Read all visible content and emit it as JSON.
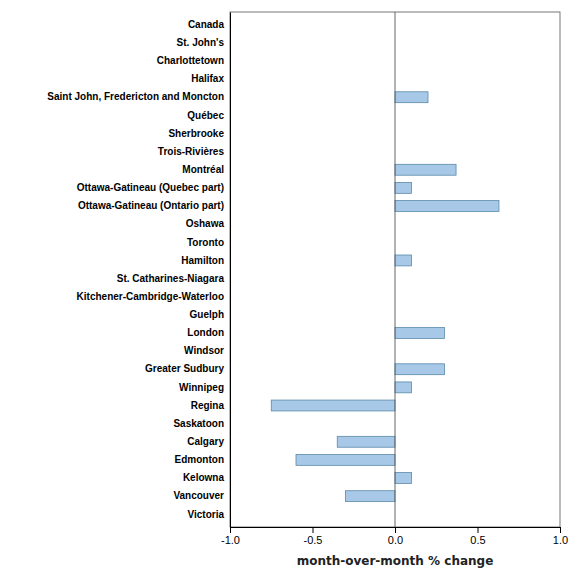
{
  "chart_data": {
    "type": "bar",
    "orientation": "horizontal",
    "x_label": "month-over-month % change",
    "categories": [
      "Canada",
      "St. John's",
      "Charlottetown",
      "Halifax",
      "Saint John, Fredericton and Moncton",
      "Québec",
      "Sherbrooke",
      "Trois-Rivières",
      "Montréal",
      "Ottawa-Gatineau (Quebec part)",
      "Ottawa-Gatineau (Ontario part)",
      "Oshawa",
      "Toronto",
      "Hamilton",
      "St. Catharines-Niagara",
      "Kitchener-Cambridge-Waterloo",
      "Guelph",
      "London",
      "Windsor",
      "Greater Sudbury",
      "Winnipeg",
      "Regina",
      "Saskatoon",
      "Calgary",
      "Edmonton",
      "Kelowna",
      "Vancouver",
      "Victoria"
    ],
    "values": [
      0.0,
      0.0,
      0.0,
      0.0,
      0.2,
      0.0,
      0.0,
      0.0,
      0.37,
      0.1,
      0.63,
      0.0,
      0.0,
      0.1,
      0.0,
      0.0,
      0.0,
      0.3,
      0.0,
      0.3,
      0.1,
      -0.75,
      0.0,
      -0.35,
      -0.6,
      0.1,
      -0.3,
      0.0
    ],
    "color": "#a8c8e8",
    "xlim": [
      -1.0,
      1.0
    ],
    "xticks": [
      {
        "value": -1.0,
        "label": "-1.0"
      },
      -0.5,
      {
        "value": 0.0,
        "label": "0.0"
      },
      0.5,
      {
        "value": 1.0,
        "label": "1.0"
      }
    ],
    "grid": false
  }
}
